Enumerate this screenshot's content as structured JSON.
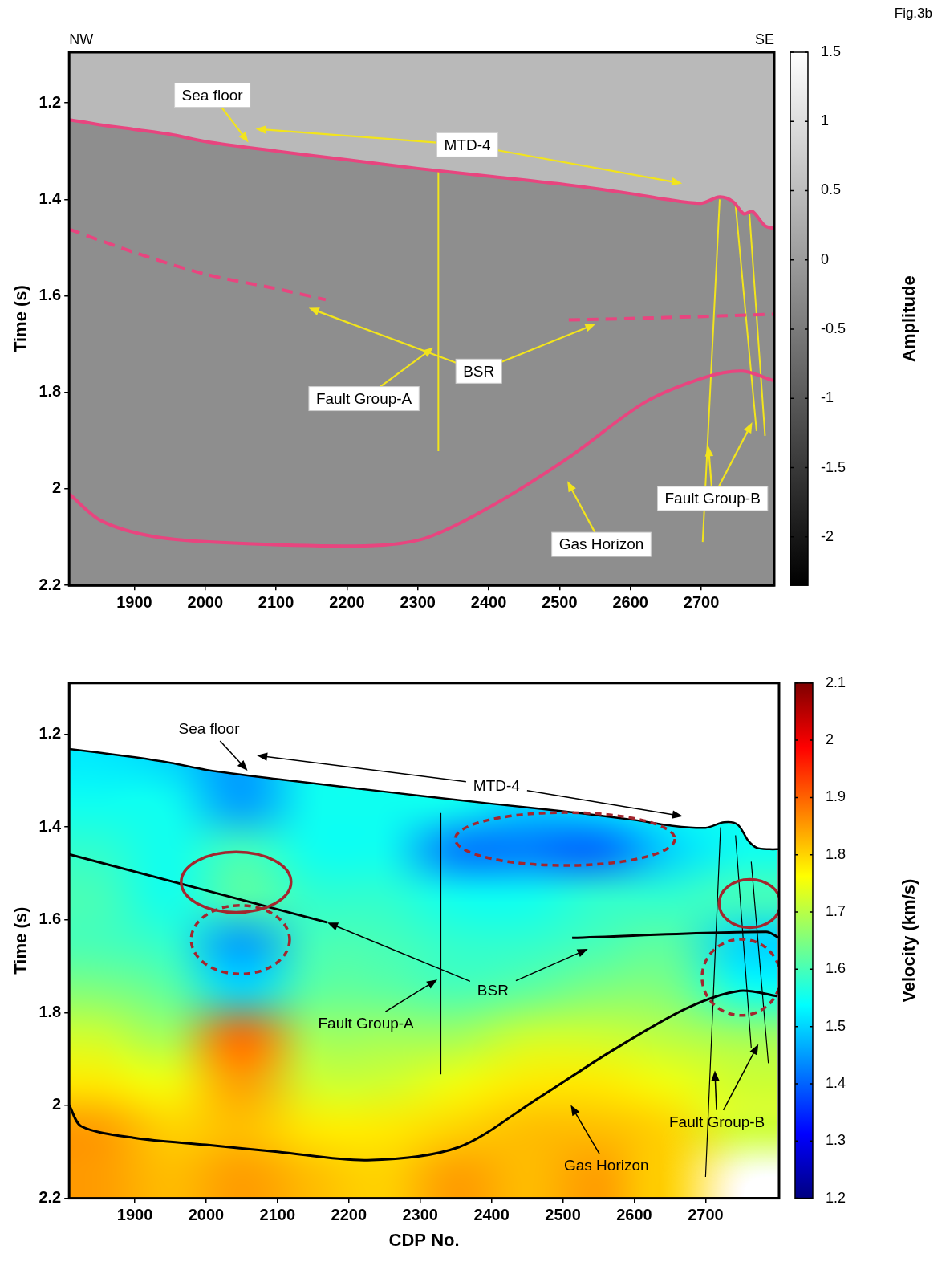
{
  "chart_data": [
    {
      "type": "line",
      "fig_label": "Fig.3b",
      "direction_labels": [
        "NW",
        "SE"
      ],
      "y_label": "Time (s)",
      "xlim": [
        1808,
        2803
      ],
      "xticks": [
        1900,
        2000,
        2100,
        2200,
        2300,
        2400,
        2500,
        2600,
        2700
      ],
      "ylim": [
        2.2,
        1.095
      ],
      "yticks": [
        1.2,
        1.4,
        1.6,
        1.8,
        2,
        2.2
      ],
      "grid": false,
      "colorbar": {
        "title": "Amplitude",
        "range": [
          -2.35,
          1.5
        ],
        "ticks": [
          1.5,
          1,
          0.5,
          0,
          -0.5,
          -1,
          -1.5,
          -2
        ],
        "colors": [
          "#000000",
          "#ffffff"
        ]
      },
      "series": [
        {
          "name": "Sea floor",
          "color": "#e8457f",
          "line_style": "solid",
          "x": [
            1808,
            1850,
            1900,
            1950,
            2000,
            2100,
            2200,
            2300,
            2400,
            2500,
            2600,
            2650,
            2700,
            2726,
            2745,
            2760,
            2772,
            2790,
            2803
          ],
          "values": [
            1.235,
            1.245,
            1.255,
            1.265,
            1.28,
            1.3,
            1.318,
            1.336,
            1.352,
            1.368,
            1.388,
            1.4,
            1.408,
            1.395,
            1.405,
            1.43,
            1.425,
            1.455,
            1.46
          ]
        },
        {
          "name": "BSR",
          "color": "#e8457f",
          "line_style": "dashed",
          "x": [
            1808,
            1900,
            2000,
            2100,
            2170,
            null,
            2513,
            2650,
            2803
          ],
          "values": [
            1.462,
            1.51,
            1.555,
            1.585,
            1.608,
            null,
            1.65,
            1.645,
            1.638
          ]
        },
        {
          "name": "Gas Horizon",
          "color": "#e8457f",
          "line_style": "solid",
          "x": [
            1808,
            1853,
            1928,
            2034,
            2226,
            2311,
            2407,
            2513,
            2620,
            2705,
            2758,
            2801
          ],
          "values": [
            2.01,
            2.066,
            2.099,
            2.112,
            2.118,
            2.102,
            2.033,
            1.935,
            1.821,
            1.769,
            1.756,
            1.775
          ]
        },
        {
          "name": "Fault Group-A",
          "color": "#f2e41c",
          "line_style": "solid",
          "x": [
            2329,
            2329
          ],
          "values": [
            1.34,
            1.922
          ]
        },
        {
          "name": "Fault Group-B",
          "color": "#f2e41c",
          "line_style": "solid",
          "x": [
            2726,
            2702,
            null,
            2748,
            2778,
            null,
            2768,
            2790
          ],
          "values": [
            1.4,
            2.11,
            null,
            1.405,
            1.88,
            null,
            1.43,
            1.89
          ]
        }
      ],
      "annotations": [
        {
          "text": "Sea floor",
          "at": [
            2010,
            1.184
          ],
          "arrows": [
            [
              2061,
              1.282
            ]
          ]
        },
        {
          "text": "MTD-4",
          "at": [
            2370,
            1.287
          ],
          "arrows": [
            [
              2071,
              1.254
            ],
            [
              2673,
              1.367
            ]
          ]
        },
        {
          "text": "BSR",
          "at": [
            2386,
            1.756
          ],
          "arrows": [
            [
              2146,
              1.625
            ],
            [
              2551,
              1.658
            ]
          ]
        },
        {
          "text": "Fault Group-A",
          "at": [
            2224,
            1.813
          ],
          "arrows": [
            [
              2322,
              1.707
            ]
          ]
        },
        {
          "text": "Fault Group-B",
          "at": [
            2716,
            2.02
          ],
          "arrows": [
            [
              2710,
              1.911
            ],
            [
              2772,
              1.862
            ]
          ]
        },
        {
          "text": "Gas Horizon",
          "at": [
            2559,
            2.115
          ],
          "arrows": [
            [
              2511,
              1.984
            ]
          ]
        }
      ]
    },
    {
      "type": "heatmap",
      "x_label": "CDP No.",
      "y_label": "Time (s)",
      "xlim": [
        1808,
        2803
      ],
      "xticks": [
        1900,
        2000,
        2100,
        2200,
        2300,
        2400,
        2500,
        2600,
        2700
      ],
      "ylim": [
        2.2,
        1.09
      ],
      "yticks": [
        1.2,
        1.4,
        1.6,
        1.8,
        2,
        2.2
      ],
      "grid": false,
      "colorbar": {
        "title": "Velocity (km/s)",
        "range": [
          1.2,
          2.1
        ],
        "ticks": [
          2.1,
          2,
          1.9,
          1.8,
          1.7,
          1.6,
          1.5,
          1.4,
          1.3,
          1.2
        ],
        "colors": [
          "#00007f",
          "#0000ff",
          "#007fff",
          "#00ffff",
          "#7fff7f",
          "#ffff00",
          "#ff7f00",
          "#ff0000",
          "#7f0000"
        ]
      },
      "cell_x": [
        1850,
        1950,
        2050,
        2150,
        2250,
        2350,
        2450,
        2550,
        2650,
        2750
      ],
      "cell_y": [
        1.25,
        1.35,
        1.45,
        1.55,
        1.65,
        1.75,
        1.85,
        1.95,
        2.05,
        2.15
      ],
      "cells": [
        [
          1.52,
          1.5,
          1.45,
          1.55,
          1.55,
          1.55,
          1.55,
          1.55,
          1.55,
          1.55
        ],
        [
          1.55,
          1.55,
          1.45,
          1.55,
          1.55,
          1.55,
          1.5,
          1.52,
          1.55,
          1.55
        ],
        [
          1.58,
          1.55,
          1.6,
          1.55,
          1.55,
          1.42,
          1.42,
          1.4,
          1.5,
          1.55
        ],
        [
          1.6,
          1.55,
          1.62,
          1.58,
          1.58,
          1.55,
          1.55,
          1.58,
          1.58,
          1.6
        ],
        [
          1.6,
          1.58,
          1.45,
          1.6,
          1.6,
          1.58,
          1.58,
          1.6,
          1.62,
          1.5
        ],
        [
          1.65,
          1.62,
          1.5,
          1.62,
          1.62,
          1.6,
          1.62,
          1.65,
          1.65,
          1.55
        ],
        [
          1.72,
          1.68,
          1.9,
          1.68,
          1.68,
          1.68,
          1.72,
          1.72,
          1.7,
          1.68
        ],
        [
          1.78,
          1.75,
          1.85,
          1.72,
          1.72,
          1.75,
          1.78,
          1.78,
          1.75,
          1.72
        ],
        [
          1.85,
          1.8,
          1.82,
          1.78,
          1.78,
          1.8,
          1.82,
          1.82,
          1.8,
          1.72
        ],
        [
          1.85,
          1.82,
          1.85,
          1.82,
          1.8,
          1.85,
          1.82,
          1.85,
          1.8,
          null
        ]
      ],
      "series": [
        {
          "name": "Sea floor",
          "color": "#000000",
          "line_style": "solid",
          "x": [
            1808,
            1850,
            1900,
            1950,
            2000,
            2100,
            2200,
            2300,
            2400,
            2500,
            2600,
            2650,
            2700,
            2726,
            2745,
            2760,
            2772,
            2790,
            2803
          ],
          "values": [
            1.232,
            1.24,
            1.25,
            1.262,
            1.277,
            1.297,
            1.315,
            1.333,
            1.35,
            1.366,
            1.385,
            1.397,
            1.402,
            1.39,
            1.395,
            1.43,
            1.445,
            1.448,
            1.448
          ]
        },
        {
          "name": "BSR",
          "color": "#000000",
          "line_style": "solid",
          "x": [
            1808,
            2170,
            null,
            2513,
            2785,
            2803
          ],
          "values": [
            1.459,
            1.606,
            null,
            1.639,
            1.626,
            1.639
          ]
        },
        {
          "name": "Gas Horizon",
          "color": "#000000",
          "line_style": "solid",
          "x": [
            1808,
            1825,
            1900,
            2000,
            2100,
            2226,
            2354,
            2460,
            2567,
            2673,
            2748,
            2801
          ],
          "values": [
            1.999,
            2.045,
            2.07,
            2.085,
            2.1,
            2.118,
            2.09,
            1.99,
            1.884,
            1.791,
            1.753,
            1.765
          ]
        },
        {
          "name": "Fault Group-A",
          "color": "#000000",
          "line_style": "solid",
          "x": [
            2329,
            2329
          ],
          "values": [
            1.37,
            1.933
          ]
        },
        {
          "name": "Fault Group-B",
          "color": "#000000",
          "line_style": "solid",
          "x": [
            2721,
            2700,
            null,
            2742,
            2764,
            null,
            2764,
            2788
          ],
          "values": [
            1.401,
            2.154,
            null,
            1.418,
            1.876,
            null,
            1.475,
            1.909
          ]
        }
      ],
      "regions": [
        {
          "center": [
            2042,
            1.519
          ],
          "radii": [
            77,
            0.065
          ],
          "line_style": "solid",
          "color": "#a3262e"
        },
        {
          "center": [
            2048,
            1.643
          ],
          "radii": [
            69,
            0.074
          ],
          "line_style": "dashed",
          "color": "#a3262e"
        },
        {
          "center": [
            2503,
            1.426
          ],
          "radii": [
            154,
            0.057
          ],
          "line_style": "dashed",
          "color": "#a3262e"
        },
        {
          "center": [
            2762,
            1.565
          ],
          "radii": [
            43,
            0.052
          ],
          "line_style": "solid",
          "color": "#a3262e"
        },
        {
          "center": [
            2750,
            1.724
          ],
          "radii": [
            55,
            0.082
          ],
          "line_style": "dashed",
          "color": "#a3262e"
        }
      ],
      "annotations": [
        {
          "text": "Sea floor",
          "at": [
            2004,
            1.189
          ],
          "arrows": [
            [
              2058,
              1.279
            ]
          ]
        },
        {
          "text": "MTD-4",
          "at": [
            2407,
            1.311
          ],
          "arrows": [
            [
              2071,
              1.246
            ],
            [
              2668,
              1.377
            ]
          ]
        },
        {
          "text": "BSR",
          "at": [
            2402,
            1.753
          ],
          "arrows": [
            [
              2170,
              1.606
            ],
            [
              2535,
              1.663
            ]
          ]
        },
        {
          "text": "Fault Group-A",
          "at": [
            2224,
            1.824
          ],
          "arrows": [
            [
              2324,
              1.729
            ]
          ]
        },
        {
          "text": "Fault Group-B",
          "at": [
            2716,
            2.036
          ],
          "arrows": [
            [
              2713,
              1.925
            ],
            [
              2774,
              1.868
            ]
          ]
        },
        {
          "text": "Gas Horizon",
          "at": [
            2561,
            2.13
          ],
          "arrows": [
            [
              2511,
              1.999
            ]
          ]
        }
      ]
    }
  ]
}
